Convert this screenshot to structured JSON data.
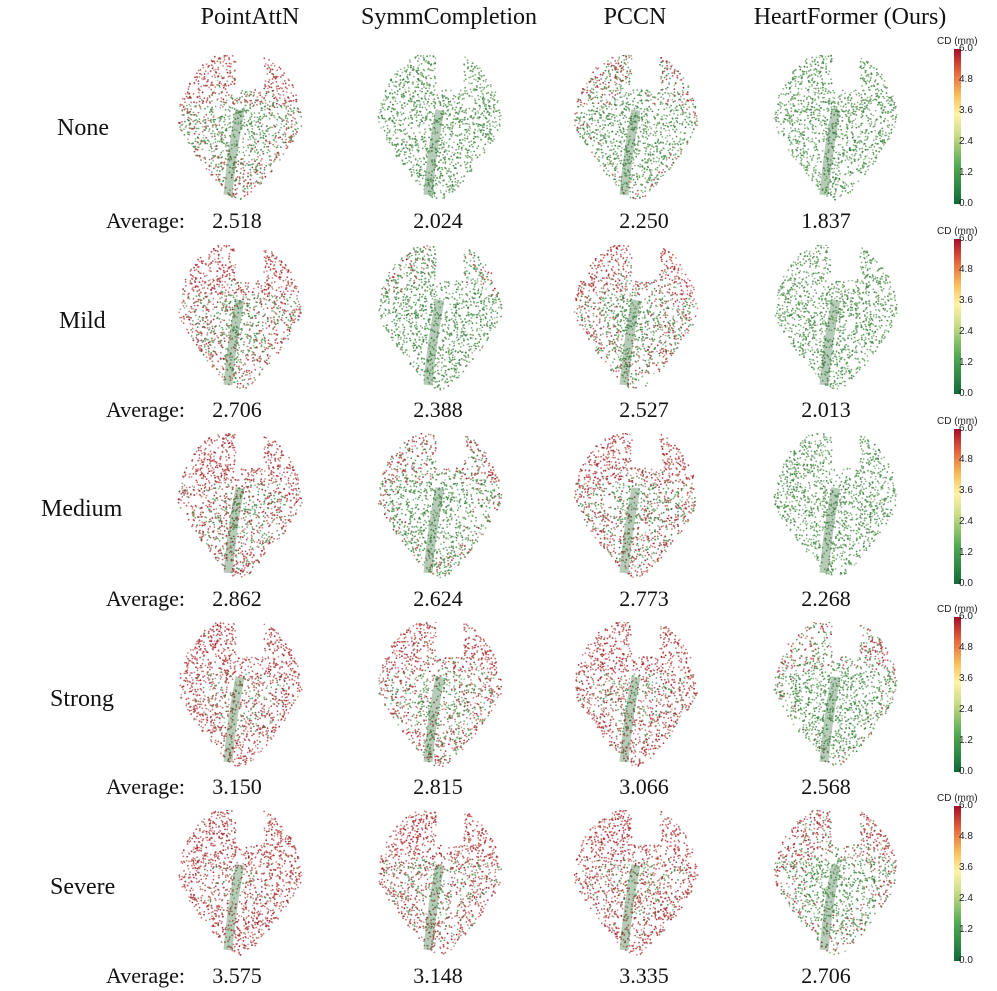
{
  "columns": [
    "PointAttN",
    "SymmCompletion",
    "PCCN",
    "HeartFormer (Ours)"
  ],
  "average_label": "Average:",
  "rows": [
    {
      "label": "None",
      "values": [
        "2.518",
        "2.024",
        "2.250",
        "1.837"
      ]
    },
    {
      "label": "Mild",
      "values": [
        "2.706",
        "2.388",
        "2.527",
        "2.013"
      ]
    },
    {
      "label": "Medium",
      "values": [
        "2.862",
        "2.624",
        "2.773",
        "2.268"
      ]
    },
    {
      "label": "Strong",
      "values": [
        "3.150",
        "2.815",
        "3.066",
        "2.568"
      ]
    },
    {
      "label": "Severe",
      "values": [
        "3.575",
        "3.148",
        "3.335",
        "2.706"
      ]
    }
  ],
  "colorbar": {
    "title": "CD (mm)",
    "ticks": [
      "6.0",
      "4.8",
      "3.6",
      "2.4",
      "1.2",
      "0.0"
    ],
    "colors": [
      "#0f6b36",
      "#55aa55",
      "#ccdd88",
      "#fff3a8",
      "#f6c15c",
      "#e4673f",
      "#a10d27"
    ]
  },
  "heart_error_levels": [
    [
      0.38,
      0.18,
      0.3,
      0.08
    ],
    [
      0.45,
      0.26,
      0.4,
      0.12
    ],
    [
      0.52,
      0.32,
      0.46,
      0.18
    ],
    [
      0.62,
      0.44,
      0.56,
      0.3
    ],
    [
      0.74,
      0.54,
      0.62,
      0.36
    ]
  ]
}
